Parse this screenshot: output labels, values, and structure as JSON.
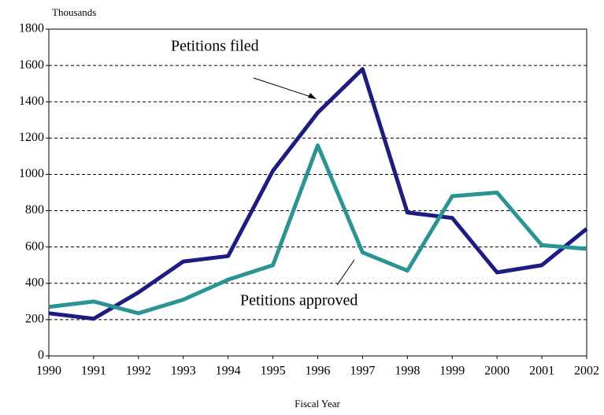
{
  "chart_data": {
    "type": "line",
    "y_label": "Thousands",
    "x_label": "Fiscal Year",
    "x": [
      1990,
      1991,
      1992,
      1993,
      1994,
      1995,
      1996,
      1997,
      1998,
      1999,
      2000,
      2001,
      2002
    ],
    "series": [
      {
        "name": "Petitions filed",
        "color": "#1c1c84",
        "values": [
          235,
          205,
          350,
          520,
          550,
          1020,
          1340,
          1580,
          790,
          760,
          460,
          500,
          700
        ]
      },
      {
        "name": "Petitions approved",
        "color": "#2a9494",
        "values": [
          270,
          300,
          235,
          310,
          420,
          500,
          1160,
          570,
          470,
          880,
          900,
          610,
          590
        ]
      }
    ],
    "xlim": [
      1990,
      2002
    ],
    "xticks": [
      1990,
      1991,
      1992,
      1993,
      1994,
      1995,
      1996,
      1997,
      1998,
      1999,
      2000,
      2001,
      2002
    ],
    "ylim": [
      0,
      1800
    ],
    "yticks": [
      0,
      200,
      400,
      600,
      800,
      1000,
      1200,
      1400,
      1600,
      1800
    ],
    "grid": true
  }
}
